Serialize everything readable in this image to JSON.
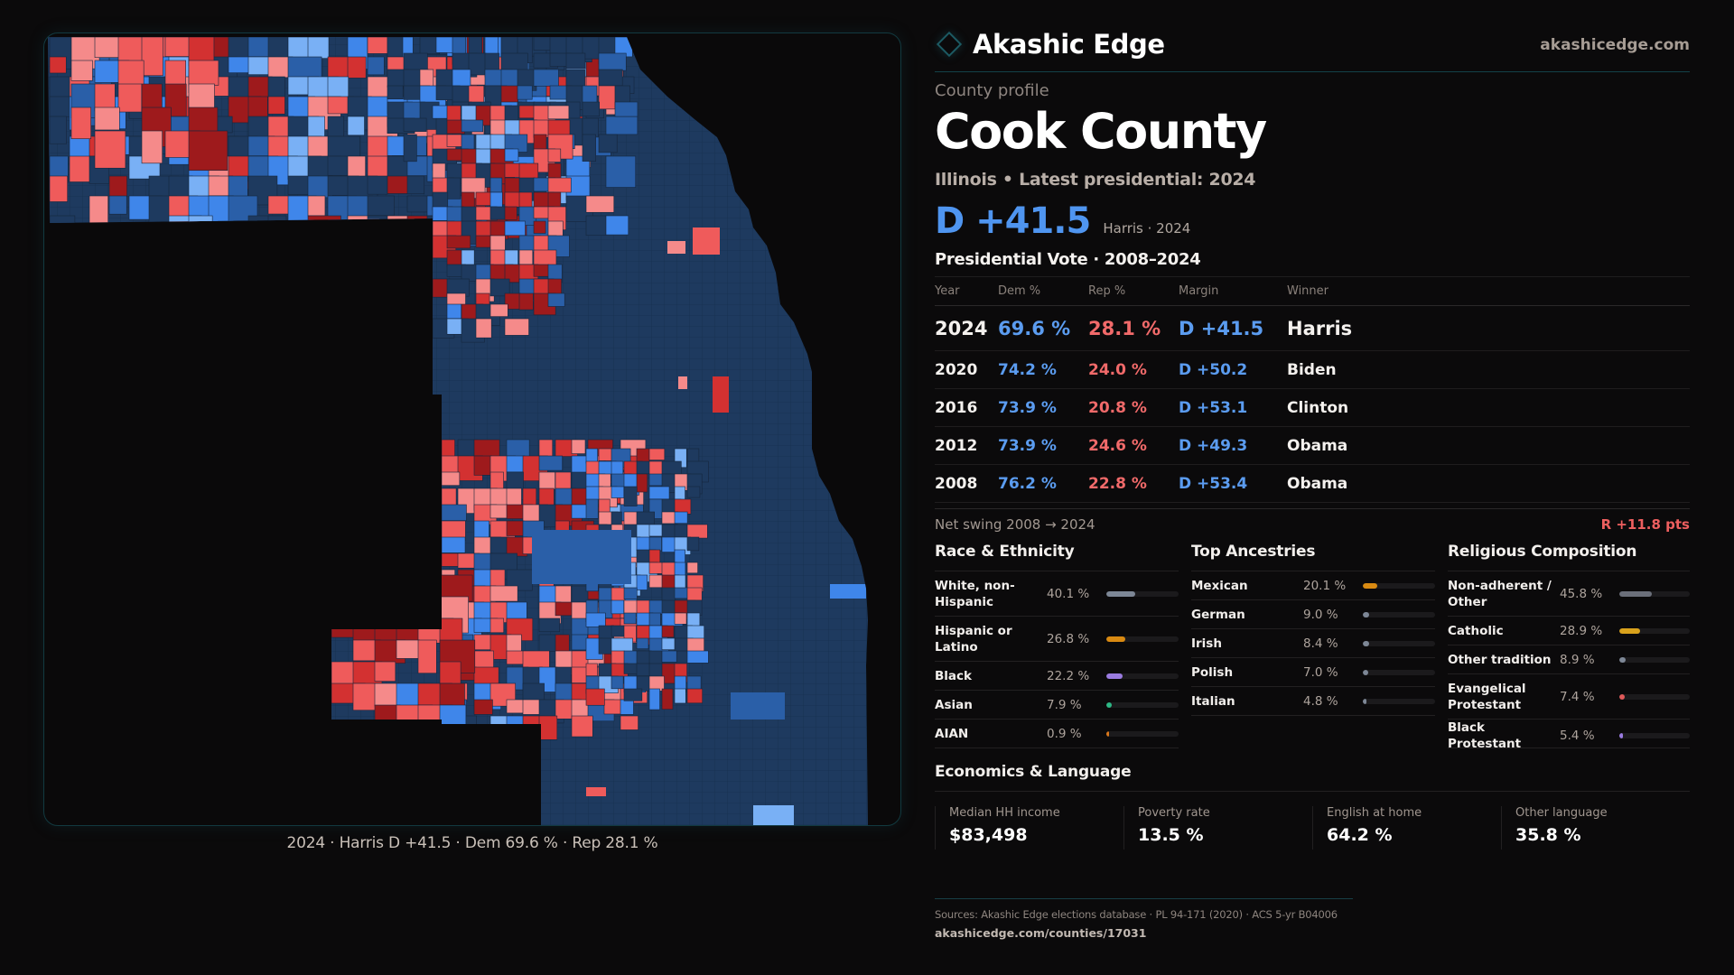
{
  "brand": {
    "name": "Akashic Edge",
    "site": "akashicedge.com",
    "icon": "diamond-logo-icon"
  },
  "profile": {
    "eyebrow": "County profile",
    "title": "Cook County",
    "subtitle": "Illinois • Latest presidential: 2024",
    "headline_margin": "D +41.5",
    "headline_note": "Harris · 2024"
  },
  "vote": {
    "title": "Presidential Vote · 2008–2024",
    "headers": [
      "Year",
      "Dem %",
      "Rep %",
      "Margin",
      "Winner"
    ],
    "rows": [
      {
        "year": "2024",
        "dem": "69.6 %",
        "rep": "28.1 %",
        "margin": "D +41.5",
        "winner": "Harris"
      },
      {
        "year": "2020",
        "dem": "74.2 %",
        "rep": "24.0 %",
        "margin": "D +50.2",
        "winner": "Biden"
      },
      {
        "year": "2016",
        "dem": "73.9 %",
        "rep": "20.8 %",
        "margin": "D +53.1",
        "winner": "Clinton"
      },
      {
        "year": "2012",
        "dem": "73.9 %",
        "rep": "24.6 %",
        "margin": "D +49.3",
        "winner": "Obama"
      },
      {
        "year": "2008",
        "dem": "76.2 %",
        "rep": "22.8 %",
        "margin": "D +53.4",
        "winner": "Obama"
      }
    ],
    "swing_label": "Net swing 2008 → 2024",
    "swing_value": "R +11.8 pts"
  },
  "race": {
    "title": "Race & Ethnicity",
    "items": [
      {
        "label": "White, non-Hispanic",
        "value": "40.1 %",
        "pct": 40.1,
        "color": "#7d8796"
      },
      {
        "label": "Hispanic or Latino",
        "value": "26.8 %",
        "pct": 26.8,
        "color": "#d98a12"
      },
      {
        "label": "Black",
        "value": "22.2 %",
        "pct": 22.2,
        "color": "#9a7be0"
      },
      {
        "label": "Asian",
        "value": "7.9 %",
        "pct": 7.9,
        "color": "#2db885"
      },
      {
        "label": "AIAN",
        "value": "0.9 %",
        "pct": 0.9,
        "color": "#d9781c"
      }
    ]
  },
  "ancestry": {
    "title": "Top Ancestries",
    "items": [
      {
        "label": "Mexican",
        "value": "20.1 %",
        "pct": 20.1,
        "color": "#d98a12"
      },
      {
        "label": "German",
        "value": "9.0 %",
        "pct": 9.0,
        "color": "#7d8796"
      },
      {
        "label": "Irish",
        "value": "8.4 %",
        "pct": 8.4,
        "color": "#7d8796"
      },
      {
        "label": "Polish",
        "value": "7.0 %",
        "pct": 7.0,
        "color": "#7d8796"
      },
      {
        "label": "Italian",
        "value": "4.8 %",
        "pct": 4.8,
        "color": "#7d8796"
      }
    ]
  },
  "religion": {
    "title": "Religious Composition",
    "items": [
      {
        "label": "Non-adherent / Other",
        "value": "45.8 %",
        "pct": 45.8,
        "color": "#6b6f7a"
      },
      {
        "label": "Catholic",
        "value": "28.9 %",
        "pct": 28.9,
        "color": "#d9a21c"
      },
      {
        "label": "Other tradition",
        "value": "8.9 %",
        "pct": 8.9,
        "color": "#7d8796"
      },
      {
        "label": "Evangelical Protestant",
        "value": "7.4 %",
        "pct": 7.4,
        "color": "#e05a5a"
      },
      {
        "label": "Black Protestant",
        "value": "5.4 %",
        "pct": 5.4,
        "color": "#9a7be0"
      }
    ]
  },
  "economics": {
    "title": "Economics & Language",
    "cards": [
      {
        "label": "Median HH income",
        "value": "$83,498"
      },
      {
        "label": "Poverty rate",
        "value": "13.5 %"
      },
      {
        "label": "English at home",
        "value": "64.2 %"
      },
      {
        "label": "Other language",
        "value": "35.8 %"
      }
    ]
  },
  "sources": {
    "text": "Sources: Akashic Edge elections database · PL 94-171 (2020) · ACS 5-yr B04006",
    "url": "akashicedge.com/counties/17031"
  },
  "map": {
    "caption": "2024 · Harris D +41.5 · Dem 69.6 % · Rep 28.1 %",
    "colors": {
      "dem_strong": "#1e3a5f",
      "dem_mid": "#2a5fa8",
      "dem_lean": "#3f86ea",
      "dem_tilt": "#79b0f5",
      "rep_tilt": "#f58a8a",
      "rep_lean": "#ef5b5b",
      "rep_mid": "#d33131",
      "rep_strong": "#9e1a1c"
    }
  }
}
